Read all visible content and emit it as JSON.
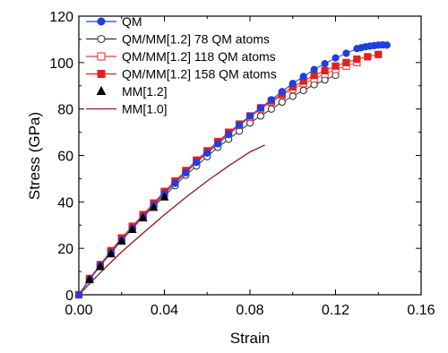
{
  "chart_data": {
    "type": "line",
    "title": "",
    "xlabel": "Strain",
    "ylabel": "Stress (GPa)",
    "xlim": [
      0,
      0.16
    ],
    "ylim": [
      0,
      120
    ],
    "x_ticks": [
      "0.00",
      "0.04",
      "0.08",
      "0.12",
      "0.16"
    ],
    "y_ticks": [
      "0",
      "20",
      "40",
      "60",
      "80",
      "100",
      "120"
    ],
    "x_tick_values": [
      0,
      0.04,
      0.08,
      0.12,
      0.16
    ],
    "y_tick_values": [
      0,
      20,
      40,
      60,
      80,
      100,
      120
    ],
    "grid": false,
    "legend_position": "top-left",
    "series": [
      {
        "name": "QM",
        "color": "#1f3fe0",
        "marker": "circle-filled",
        "line": "solid",
        "x": [
          0,
          0.005,
          0.01,
          0.015,
          0.02,
          0.025,
          0.03,
          0.035,
          0.04,
          0.045,
          0.05,
          0.055,
          0.06,
          0.065,
          0.07,
          0.075,
          0.08,
          0.085,
          0.09,
          0.095,
          0.1,
          0.105,
          0.11,
          0.115,
          0.12,
          0.125,
          0.13,
          0.132,
          0.134,
          0.136,
          0.138,
          0.14,
          0.142,
          0.144
        ],
        "y": [
          0,
          6.5,
          12.5,
          18,
          23.5,
          28.5,
          33.5,
          38.5,
          43.5,
          48,
          52.5,
          57,
          61,
          65,
          69,
          73,
          77,
          80.5,
          84,
          87.5,
          91,
          94,
          97,
          99.5,
          102,
          104,
          106,
          106.4,
          106.8,
          107.1,
          107.3,
          107.5,
          107.6,
          107.5
        ]
      },
      {
        "name": "QM/MM[1.2] 78 QM atoms",
        "color": "#333333",
        "marker": "circle-open",
        "line": "solid",
        "x": [
          0,
          0.005,
          0.01,
          0.015,
          0.02,
          0.025,
          0.03,
          0.035,
          0.04,
          0.045,
          0.05,
          0.055,
          0.06,
          0.065,
          0.07,
          0.075,
          0.08,
          0.085,
          0.09,
          0.095,
          0.1,
          0.105,
          0.11,
          0.115,
          0.12
        ],
        "y": [
          0,
          6.5,
          12.5,
          18,
          23.5,
          28.5,
          33.5,
          38,
          42.5,
          47,
          51.5,
          55.5,
          59.5,
          63.5,
          67,
          70.5,
          74,
          77,
          80,
          83,
          85.5,
          88,
          90.5,
          92.5,
          94.5
        ]
      },
      {
        "name": "QM/MM[1.2] 118 QM atoms",
        "color": "#e04040",
        "marker": "square-open",
        "line": "solid",
        "x": [
          0,
          0.005,
          0.01,
          0.015,
          0.02,
          0.025,
          0.03,
          0.035,
          0.04,
          0.045,
          0.05,
          0.055,
          0.06,
          0.065,
          0.07,
          0.075,
          0.08,
          0.085,
          0.09,
          0.095,
          0.1,
          0.105,
          0.11,
          0.115,
          0.12,
          0.125,
          0.13
        ],
        "y": [
          0,
          6.5,
          12.5,
          18.5,
          24,
          29,
          34,
          39,
          44,
          48.5,
          53,
          57.5,
          61.5,
          65.5,
          69.5,
          73,
          76.5,
          80,
          83,
          86,
          88.5,
          91,
          93,
          95,
          97,
          98.5,
          100
        ]
      },
      {
        "name": "QM/MM[1.2] 158 QM atoms",
        "color": "#e02020",
        "marker": "square-filled",
        "line": "solid",
        "x": [
          0,
          0.005,
          0.01,
          0.015,
          0.02,
          0.025,
          0.03,
          0.035,
          0.04,
          0.045,
          0.05,
          0.055,
          0.06,
          0.065,
          0.07,
          0.075,
          0.08,
          0.085,
          0.09,
          0.095,
          0.1,
          0.105,
          0.11,
          0.115,
          0.12,
          0.125,
          0.13,
          0.135,
          0.14
        ],
        "y": [
          0,
          7,
          13,
          19,
          24.5,
          29.5,
          34.5,
          39.5,
          44.5,
          49,
          53.5,
          58,
          62,
          66,
          70,
          73.5,
          77,
          80.5,
          83.5,
          86.5,
          89.5,
          92,
          94.5,
          96.5,
          98.5,
          100,
          101.5,
          102.5,
          103.5
        ]
      },
      {
        "name": "MM[1.2]",
        "color": "#000000",
        "marker": "triangle-filled",
        "line": "none",
        "x": [
          0.005,
          0.01,
          0.015,
          0.02,
          0.025,
          0.03,
          0.035,
          0.04
        ],
        "y": [
          6.5,
          12,
          17.5,
          23,
          28,
          33,
          37.5,
          42
        ]
      },
      {
        "name": "MM[1.0]",
        "color": "#8b1a1a",
        "marker": "none",
        "line": "solid",
        "x": [
          0,
          0.01,
          0.02,
          0.03,
          0.04,
          0.05,
          0.06,
          0.07,
          0.08,
          0.087
        ],
        "y": [
          0,
          9.5,
          18.5,
          26.5,
          34.5,
          42,
          49,
          55.5,
          61.5,
          64.5
        ]
      }
    ]
  }
}
